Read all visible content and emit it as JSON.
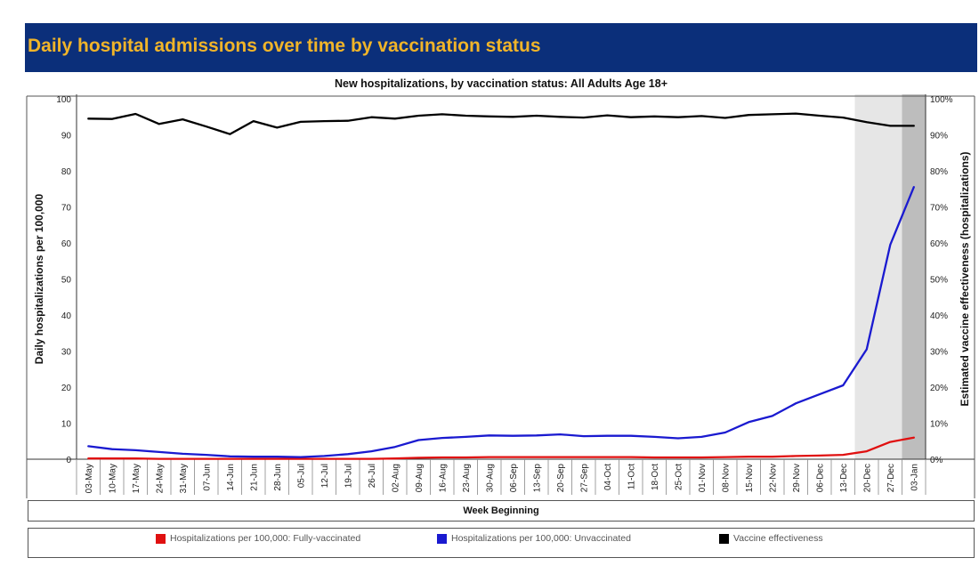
{
  "header": {
    "title": "Daily hospital admissions over time by vaccination status"
  },
  "chart_data": {
    "type": "line",
    "title": "New hospitalizations, by vaccination status: All Adults Age 18+",
    "xlabel": "Week Beginning",
    "ylabel": "Daily hospitalizations per 100,000",
    "y2label": "Estimated vaccine effectiveness (hospitalizations)",
    "categories": [
      "03-May",
      "10-May",
      "17-May",
      "24-May",
      "31-May",
      "07-Jun",
      "14-Jun",
      "21-Jun",
      "28-Jun",
      "05-Jul",
      "12-Jul",
      "19-Jul",
      "26-Jul",
      "02-Aug",
      "09-Aug",
      "16-Aug",
      "23-Aug",
      "30-Aug",
      "06-Sep",
      "13-Sep",
      "20-Sep",
      "27-Sep",
      "04-Oct",
      "11-Oct",
      "18-Oct",
      "25-Oct",
      "01-Nov",
      "08-Nov",
      "15-Nov",
      "22-Nov",
      "29-Nov",
      "06-Dec",
      "13-Dec",
      "20-Dec",
      "27-Dec",
      "03-Jan"
    ],
    "ylim": [
      0,
      100
    ],
    "y2lim": [
      0,
      100
    ],
    "yticks": [
      "0",
      "10",
      "20",
      "30",
      "40",
      "50",
      "60",
      "70",
      "80",
      "90",
      "100"
    ],
    "y2ticks": [
      "0%",
      "10%",
      "20%",
      "30%",
      "40%",
      "50%",
      "60%",
      "70%",
      "80%",
      "90%",
      "100%"
    ],
    "grid": false,
    "legend_position": "bottom",
    "shaded_weeks": [
      {
        "from": "20-Dec",
        "to": "27-Dec",
        "color": "#e6e6e6"
      },
      {
        "from": "03-Jan",
        "to": "03-Jan",
        "color": "#bdbdbd"
      }
    ],
    "series": [
      {
        "name": "Hospitalizations per 100,000: Fully-vaccinated",
        "color": "#e01010",
        "axis": "left",
        "values": [
          0.2,
          0.2,
          0.2,
          0.1,
          0.1,
          0.1,
          0.1,
          0.1,
          0.1,
          0.1,
          0.1,
          0.1,
          0.1,
          0.2,
          0.4,
          0.5,
          0.5,
          0.6,
          0.6,
          0.6,
          0.6,
          0.6,
          0.6,
          0.6,
          0.5,
          0.5,
          0.5,
          0.6,
          0.7,
          0.7,
          0.9,
          1.0,
          1.2,
          2.2,
          4.8,
          6.0
        ]
      },
      {
        "name": "Hospitalizations per 100,000: Unvaccinated",
        "color": "#1a1ad0",
        "axis": "left",
        "values": [
          3.6,
          2.8,
          2.5,
          2.0,
          1.5,
          1.2,
          0.8,
          0.7,
          0.7,
          0.6,
          0.9,
          1.4,
          2.2,
          3.4,
          5.3,
          5.9,
          6.2,
          6.6,
          6.5,
          6.6,
          6.9,
          6.4,
          6.5,
          6.5,
          6.2,
          5.8,
          6.2,
          7.4,
          10.3,
          12.0,
          15.5,
          18.0,
          20.5,
          30.5,
          59.5,
          75.5
        ]
      },
      {
        "name": "Vaccine effectiveness",
        "color": "#000000",
        "axis": "right",
        "values": [
          94.5,
          94.4,
          95.8,
          93.0,
          94.3,
          92.3,
          90.2,
          93.8,
          92.0,
          93.6,
          93.8,
          93.9,
          94.9,
          94.5,
          95.3,
          95.7,
          95.3,
          95.1,
          95.0,
          95.3,
          95.0,
          94.8,
          95.4,
          94.9,
          95.1,
          94.9,
          95.2,
          94.7,
          95.5,
          95.7,
          95.9,
          95.3,
          94.8,
          93.5,
          92.5,
          92.5
        ]
      }
    ]
  }
}
